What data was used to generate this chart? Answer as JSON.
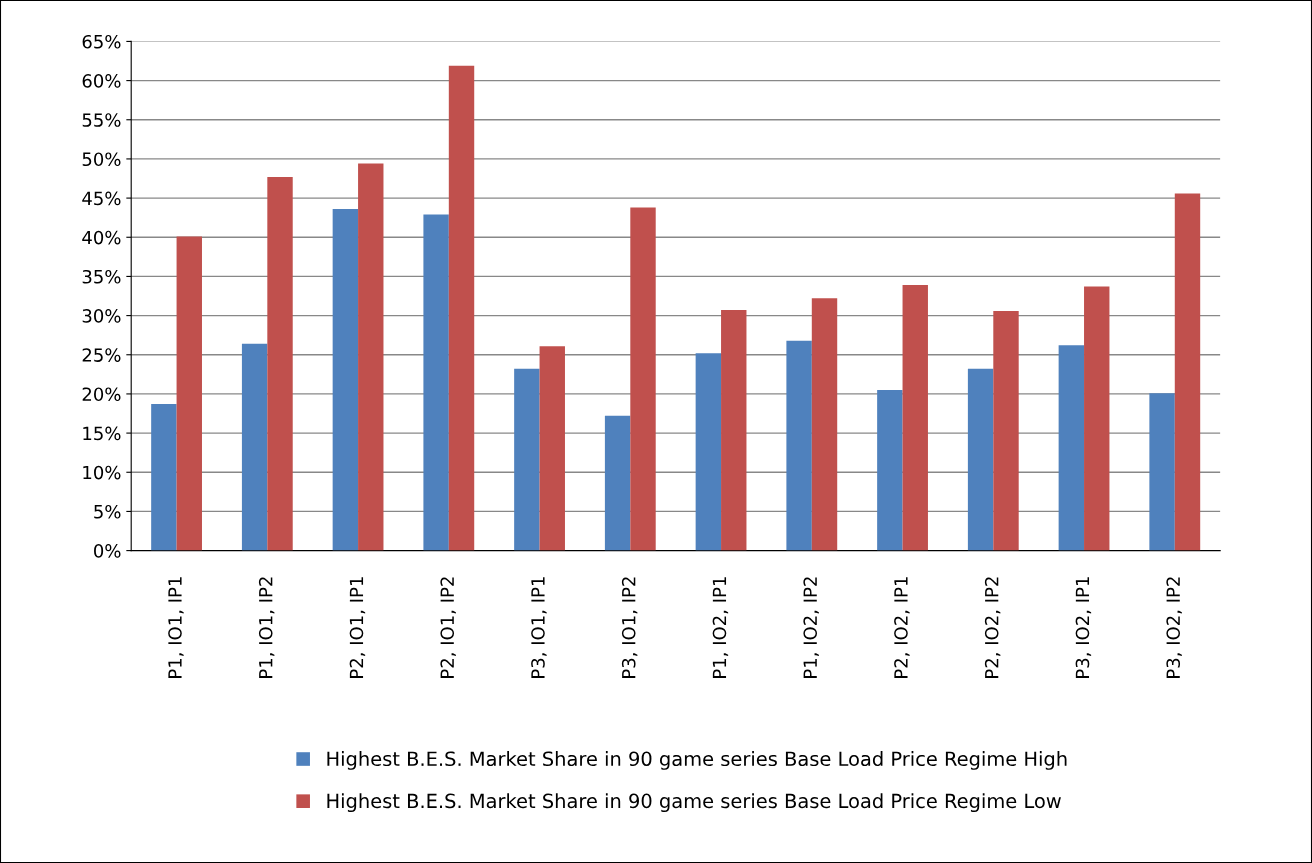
{
  "chart_data": {
    "type": "bar",
    "categories": [
      "P1, IO1, IP1",
      "P1, IO1, IP2",
      "P2, IO1, IP1",
      "P2, IO1, IP2",
      "P3, IO1, IP1",
      "P3, IO1, IP2",
      "P1, IO2, IP1",
      "P1, IO2, IP2",
      "P2, IO2, IP1",
      "P2, IO2, IP2",
      "P3, IO2, IP1",
      "P3, IO2, IP2"
    ],
    "series": [
      {
        "name": "Highest B.E.S. Market Share in 90 game series Base Load Price Regime High",
        "color": "#4f81bd",
        "values": [
          18.7,
          26.4,
          43.6,
          42.9,
          23.2,
          17.2,
          25.2,
          26.8,
          20.5,
          23.2,
          26.2,
          20.1
        ]
      },
      {
        "name": "Highest B.E.S. Market Share in 90 game series Base Load Price Regime Low",
        "color": "#c0504d",
        "values": [
          40.1,
          47.7,
          49.4,
          61.9,
          26.1,
          43.8,
          30.7,
          32.2,
          33.9,
          30.6,
          33.7,
          45.6
        ]
      }
    ],
    "ylim": [
      0,
      65
    ],
    "yticks": [
      {
        "value": 0,
        "label": "0%"
      },
      {
        "value": 5,
        "label": "5%"
      },
      {
        "value": 10,
        "label": "10%"
      },
      {
        "value": 15,
        "label": "15%"
      },
      {
        "value": 20,
        "label": "20%"
      },
      {
        "value": 25,
        "label": "25%"
      },
      {
        "value": 30,
        "label": "30%"
      },
      {
        "value": 35,
        "label": "35%"
      },
      {
        "value": 40,
        "label": "40%"
      },
      {
        "value": 45,
        "label": "45%"
      },
      {
        "value": 50,
        "label": "50%"
      },
      {
        "value": 55,
        "label": "55%"
      },
      {
        "value": 60,
        "label": "60%"
      },
      {
        "value": 65,
        "label": "65%"
      }
    ],
    "grid": "y",
    "legend": "bottom"
  }
}
